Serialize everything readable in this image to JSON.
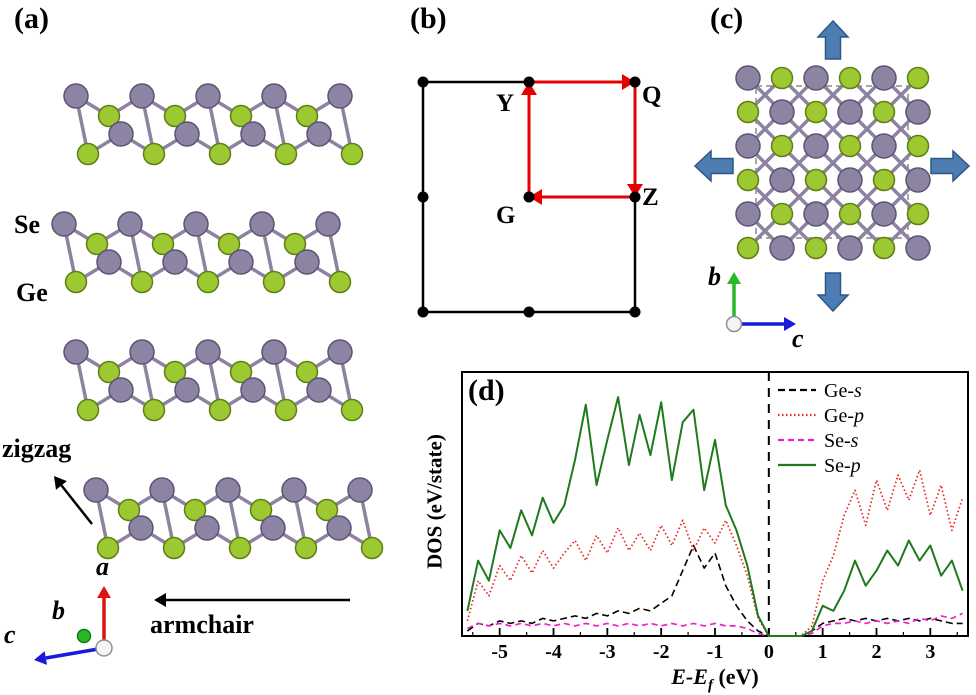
{
  "figure": {
    "panel_a": {
      "label": "(a)",
      "se": "Se",
      "ge": "Ge",
      "zigzag": "zigzag",
      "armchair": "armchair",
      "axis_a": "a",
      "axis_b": "b",
      "axis_c": "c"
    },
    "panel_b": {
      "label": "(b)",
      "point_y": "Y",
      "point_q": "Q",
      "point_g": "G",
      "point_z": "Z"
    },
    "panel_c": {
      "label": "(c)",
      "axis_b": "b",
      "axis_c": "c"
    },
    "panel_d": {
      "label": "(d)",
      "ylabel": "DOS (eV/state)",
      "xlabel_main": "E-E",
      "xlabel_sub": "f",
      "xlabel_unit": " (eV)"
    }
  },
  "colors": {
    "se_atom": "#9cc832",
    "se_atom_edge": "#5e7d14",
    "ge_atom": "#8d84a3",
    "ge_atom_edge": "#5c5474",
    "bond": "#8d83a0",
    "strain_arrow": "#4d7db3",
    "strain_arrow_edge": "#2c5787",
    "bz_path": "#e60000",
    "axis_a_red": "#dd1511",
    "axis_b_green": "#28b828",
    "axis_c_blue": "#1a1adf"
  },
  "chart_data": {
    "type": "line",
    "title": "",
    "xlabel": "E-Ef (eV)",
    "ylabel": "DOS (eV/state)",
    "xlim": [
      -5.7,
      3.7
    ],
    "ylim": [
      0,
      1.05
    ],
    "x_ticks": [
      -5,
      -4,
      -3,
      -2,
      -1,
      0,
      1,
      2,
      3
    ],
    "fermi_line_x": 0,
    "grid": false,
    "legend_position": "top-right",
    "x": [
      -5.6,
      -5.4,
      -5.2,
      -5.0,
      -4.8,
      -4.6,
      -4.4,
      -4.2,
      -4.0,
      -3.8,
      -3.6,
      -3.4,
      -3.2,
      -3.0,
      -2.8,
      -2.6,
      -2.4,
      -2.2,
      -2.0,
      -1.8,
      -1.6,
      -1.4,
      -1.2,
      -1.0,
      -0.8,
      -0.6,
      -0.4,
      -0.2,
      0.0,
      0.2,
      0.4,
      0.6,
      0.8,
      1.0,
      1.2,
      1.4,
      1.6,
      1.8,
      2.0,
      2.2,
      2.4,
      2.6,
      2.8,
      3.0,
      3.2,
      3.4,
      3.6
    ],
    "legend": [
      {
        "element": "Ge",
        "orbital": "s",
        "color": "#000000",
        "dash": "7,4",
        "width": 1.6
      },
      {
        "element": "Ge",
        "orbital": "p",
        "color": "#e8241c",
        "dash": "1.5,2.5",
        "width": 1.7
      },
      {
        "element": "Se",
        "orbital": "s",
        "color": "#ee22cc",
        "dash": "6,4",
        "width": 1.7
      },
      {
        "element": "Se",
        "orbital": "p",
        "color": "#1f7a1f",
        "dash": "",
        "width": 2
      }
    ],
    "series": [
      {
        "name": "Ge-s",
        "values": [
          0.02,
          0.05,
          0.04,
          0.06,
          0.05,
          0.06,
          0.05,
          0.07,
          0.06,
          0.07,
          0.08,
          0.07,
          0.09,
          0.08,
          0.1,
          0.09,
          0.11,
          0.1,
          0.13,
          0.16,
          0.26,
          0.36,
          0.27,
          0.33,
          0.2,
          0.12,
          0.06,
          0.02,
          0.0,
          0.0,
          0.0,
          0.0,
          0.02,
          0.05,
          0.06,
          0.07,
          0.06,
          0.07,
          0.06,
          0.07,
          0.06,
          0.07,
          0.06,
          0.07,
          0.06,
          0.05,
          0.05
        ]
      },
      {
        "name": "Ge-p",
        "values": [
          0.06,
          0.22,
          0.16,
          0.28,
          0.22,
          0.32,
          0.25,
          0.34,
          0.27,
          0.33,
          0.38,
          0.3,
          0.4,
          0.33,
          0.43,
          0.34,
          0.41,
          0.34,
          0.44,
          0.36,
          0.46,
          0.34,
          0.43,
          0.37,
          0.46,
          0.36,
          0.24,
          0.07,
          0.0,
          0.0,
          0.0,
          0.0,
          0.04,
          0.22,
          0.32,
          0.48,
          0.58,
          0.44,
          0.62,
          0.5,
          0.64,
          0.54,
          0.66,
          0.48,
          0.6,
          0.42,
          0.55
        ]
      },
      {
        "name": "Se-s",
        "values": [
          0.03,
          0.05,
          0.04,
          0.05,
          0.04,
          0.05,
          0.04,
          0.05,
          0.04,
          0.05,
          0.04,
          0.05,
          0.04,
          0.05,
          0.04,
          0.05,
          0.04,
          0.05,
          0.04,
          0.05,
          0.04,
          0.05,
          0.04,
          0.05,
          0.04,
          0.04,
          0.03,
          0.01,
          0.0,
          0.0,
          0.0,
          0.0,
          0.01,
          0.04,
          0.05,
          0.05,
          0.06,
          0.05,
          0.06,
          0.05,
          0.06,
          0.05,
          0.07,
          0.06,
          0.08,
          0.07,
          0.09
        ]
      },
      {
        "name": "Se-p",
        "values": [
          0.1,
          0.3,
          0.22,
          0.42,
          0.35,
          0.5,
          0.4,
          0.55,
          0.45,
          0.52,
          0.7,
          0.92,
          0.6,
          0.78,
          0.95,
          0.68,
          0.88,
          0.72,
          0.93,
          0.62,
          0.85,
          0.9,
          0.58,
          0.78,
          0.52,
          0.42,
          0.28,
          0.08,
          0.0,
          0.0,
          0.0,
          0.0,
          0.02,
          0.12,
          0.1,
          0.18,
          0.3,
          0.2,
          0.26,
          0.34,
          0.28,
          0.38,
          0.3,
          0.36,
          0.24,
          0.3,
          0.18
        ]
      }
    ]
  }
}
